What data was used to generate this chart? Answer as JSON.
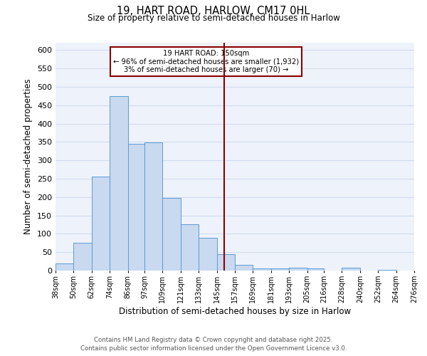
{
  "title": "19, HART ROAD, HARLOW, CM17 0HL",
  "subtitle": "Size of property relative to semi-detached houses in Harlow",
  "xlabel": "Distribution of semi-detached houses by size in Harlow",
  "ylabel": "Number of semi-detached properties",
  "bin_edges": [
    38,
    50,
    62,
    74,
    86,
    97,
    109,
    121,
    133,
    145,
    157,
    169,
    181,
    193,
    205,
    216,
    228,
    240,
    252,
    264,
    276
  ],
  "bin_heights": [
    20,
    75,
    255,
    475,
    345,
    348,
    198,
    126,
    90,
    45,
    15,
    6,
    5,
    8,
    5,
    0,
    7,
    0,
    2,
    0
  ],
  "bar_facecolor": "#c8d9f0",
  "bar_edgecolor": "#5b9bd5",
  "grid_color": "#d0ddf0",
  "background_color": "#eef2fa",
  "vline_x": 150,
  "vline_color": "#8b0000",
  "annotation_title": "19 HART ROAD: 150sqm",
  "annotation_line1": "← 96% of semi-detached houses are smaller (1,932)",
  "annotation_line2": "3% of semi-detached houses are larger (70) →",
  "annotation_box_color": "#8b0000",
  "footer_line1": "Contains HM Land Registry data © Crown copyright and database right 2025.",
  "footer_line2": "Contains public sector information licensed under the Open Government Licence v3.0.",
  "ylim": [
    0,
    620
  ],
  "yticks": [
    0,
    50,
    100,
    150,
    200,
    250,
    300,
    350,
    400,
    450,
    500,
    550,
    600
  ],
  "x_tick_labels": [
    "38sqm",
    "50sqm",
    "62sqm",
    "74sqm",
    "86sqm",
    "97sqm",
    "109sqm",
    "121sqm",
    "133sqm",
    "145sqm",
    "157sqm",
    "169sqm",
    "181sqm",
    "193sqm",
    "205sqm",
    "216sqm",
    "228sqm",
    "240sqm",
    "252sqm",
    "264sqm",
    "276sqm"
  ]
}
